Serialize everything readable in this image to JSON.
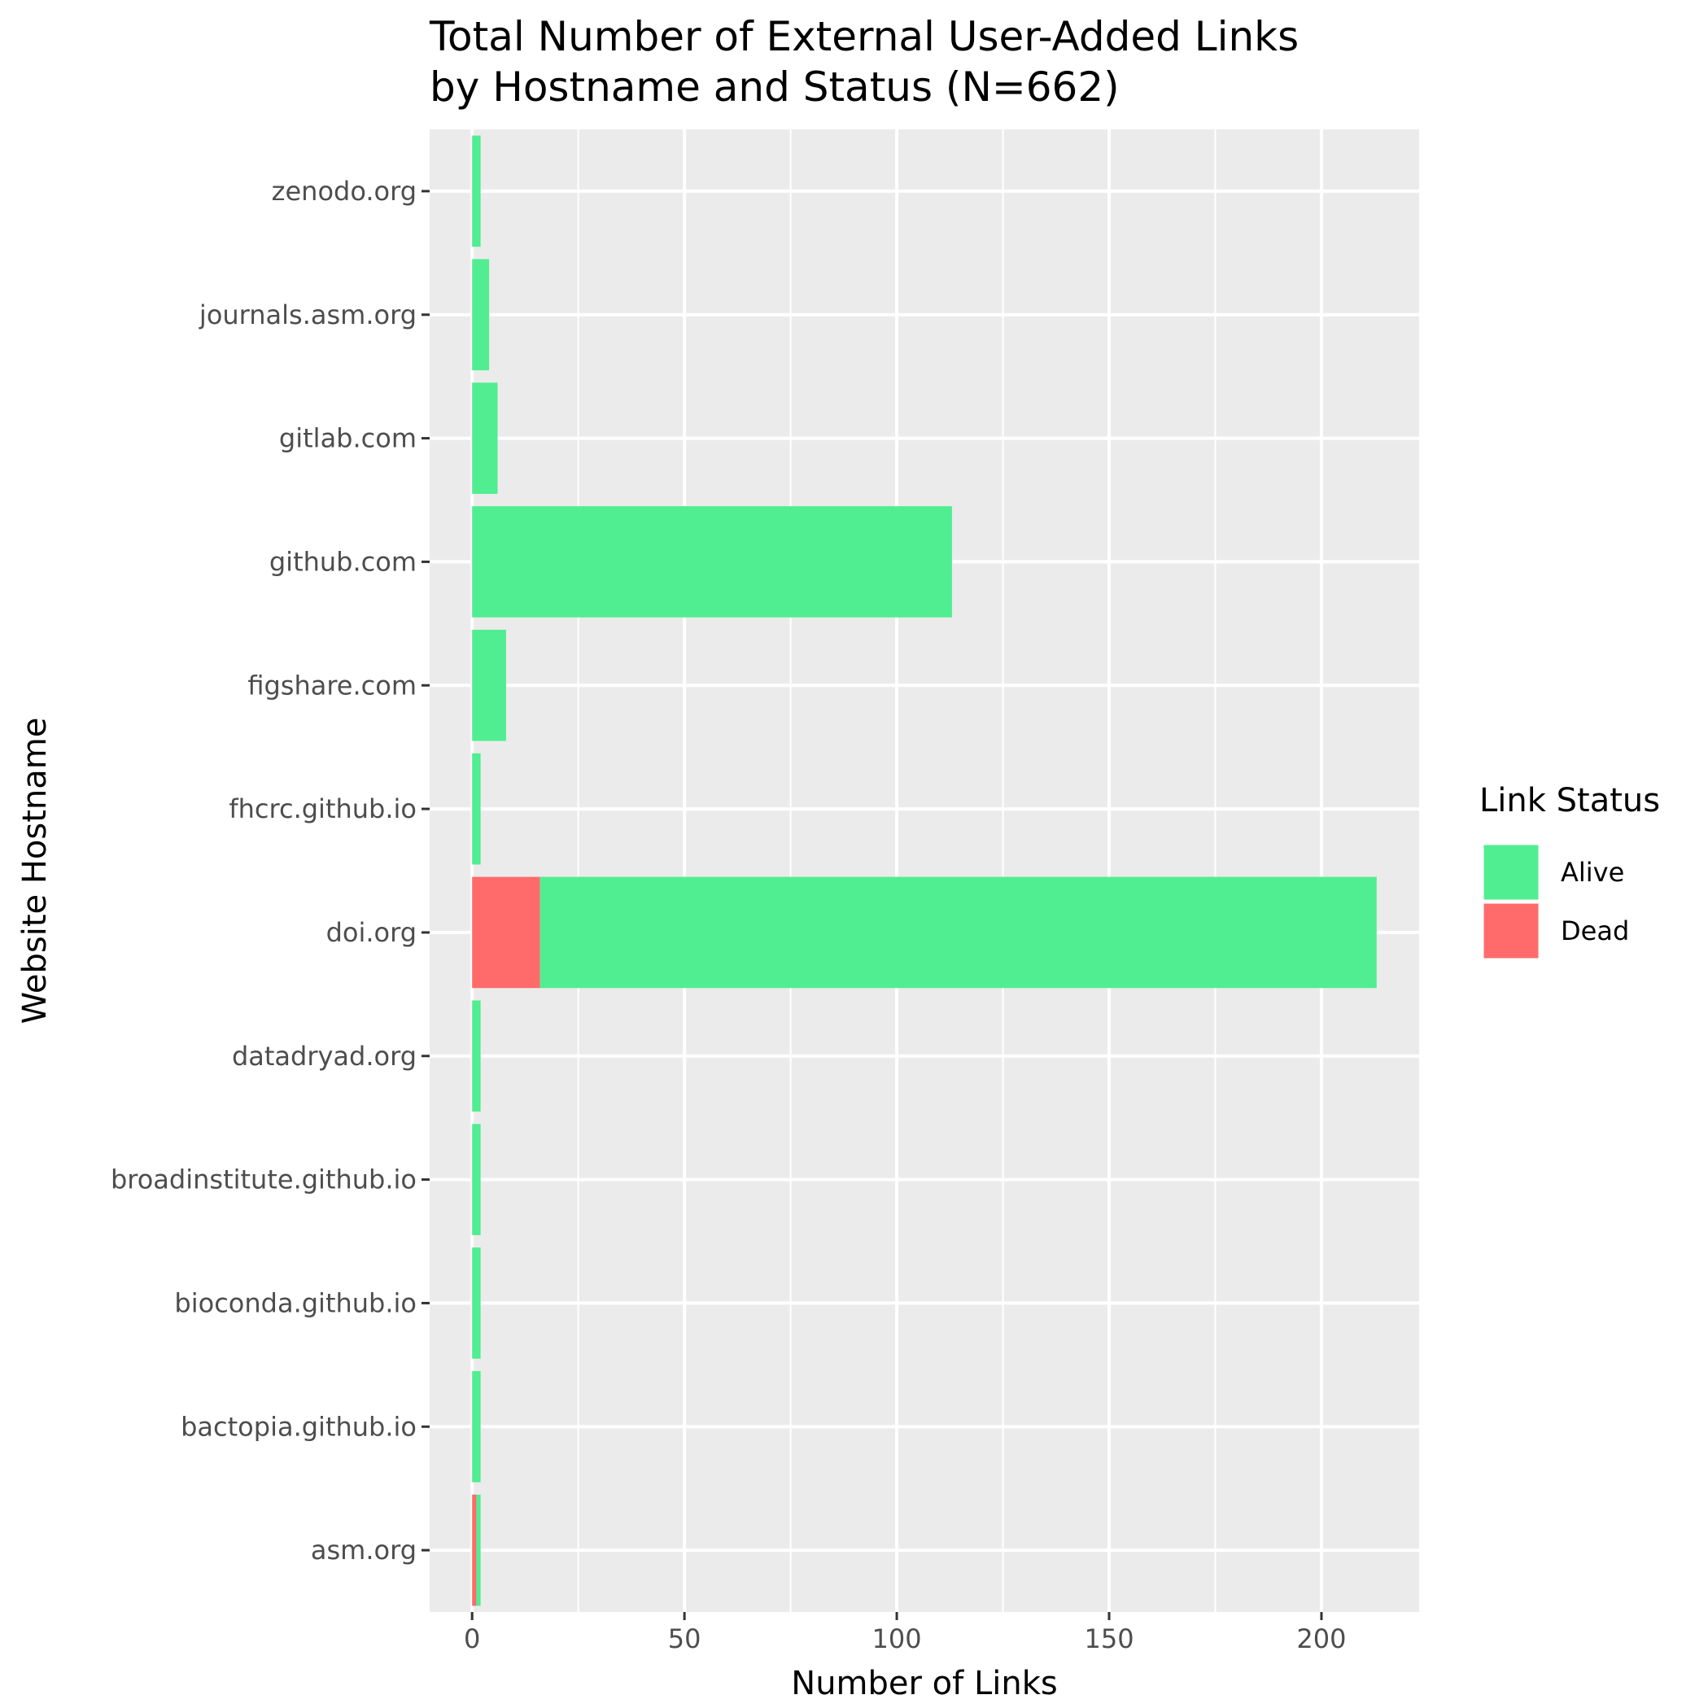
{
  "chart_data": {
    "type": "bar",
    "orientation": "horizontal",
    "stacked": true,
    "title_lines": [
      "Total Number of External User-Added Links",
      "by Hostname and Status (N=662)"
    ],
    "xlabel": "Number of Links",
    "ylabel": "Website Hostname",
    "xlim": [
      -10,
      223
    ],
    "x_ticks": [
      0,
      50,
      100,
      150,
      200
    ],
    "x_tick_labels": [
      "0",
      "50",
      "100",
      "150",
      "200"
    ],
    "categories": [
      "asm.org",
      "bactopia.github.io",
      "bioconda.github.io",
      "broadinstitute.github.io",
      "datadryad.org",
      "doi.org",
      "fhcrc.github.io",
      "figshare.com",
      "github.com",
      "gitlab.com",
      "journals.asm.org",
      "zenodo.org"
    ],
    "series": [
      {
        "name": "Dead",
        "color": "#ff6b6b",
        "values": [
          1,
          0,
          0,
          0,
          0,
          16,
          0,
          0,
          0,
          0,
          0,
          0
        ]
      },
      {
        "name": "Alive",
        "color": "#50ee90",
        "values": [
          1,
          2,
          2,
          2,
          2,
          197,
          2,
          8,
          113,
          6,
          4,
          2
        ]
      }
    ],
    "legend": {
      "title": "Link Status",
      "position": "right",
      "entries": [
        {
          "label": "Alive",
          "color": "#50ee90"
        },
        {
          "label": "Dead",
          "color": "#ff6b6b"
        }
      ]
    },
    "grid": true,
    "panel_color": "#ebebeb",
    "grid_color": "#ffffff"
  }
}
